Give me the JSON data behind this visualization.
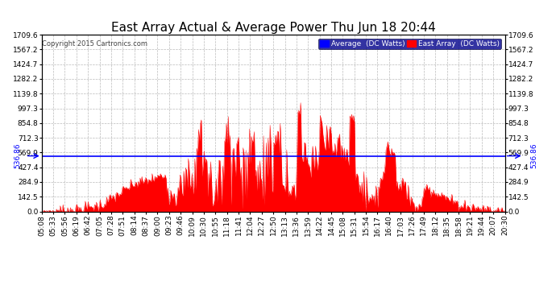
{
  "title": "East Array Actual & Average Power Thu Jun 18 20:44",
  "copyright": "Copyright 2015 Cartronics.com",
  "average_value": 536.86,
  "ymax": 1709.6,
  "yticks": [
    0.0,
    142.5,
    284.9,
    427.4,
    569.9,
    712.3,
    854.8,
    997.3,
    1139.8,
    1282.2,
    1424.7,
    1567.2,
    1709.6
  ],
  "legend_average_label": "Average  (DC Watts)",
  "legend_east_label": "East Array  (DC Watts)",
  "xtick_labels": [
    "05:08",
    "05:33",
    "05:56",
    "06:19",
    "06:42",
    "07:05",
    "07:28",
    "07:51",
    "08:14",
    "08:37",
    "09:00",
    "09:23",
    "09:46",
    "10:09",
    "10:30",
    "10:55",
    "11:18",
    "11:41",
    "12:04",
    "12:27",
    "12:50",
    "13:13",
    "13:36",
    "13:59",
    "14:22",
    "14:45",
    "15:08",
    "15:31",
    "15:54",
    "16:17",
    "16:40",
    "17:03",
    "17:26",
    "17:49",
    "18:12",
    "18:35",
    "18:58",
    "19:21",
    "19:44",
    "20:07",
    "20:30"
  ],
  "background_color": "#ffffff",
  "plot_bg_color": "#ffffff",
  "grid_color": "#bbbbbb",
  "fill_color": "#ff0000",
  "line_color": "#ff0000",
  "avg_line_color": "#0000ff",
  "title_fontsize": 11,
  "label_fontsize": 6.5,
  "axis_label_color": "#000000",
  "left_avg_label": "536.86",
  "right_avg_label": "536.86"
}
